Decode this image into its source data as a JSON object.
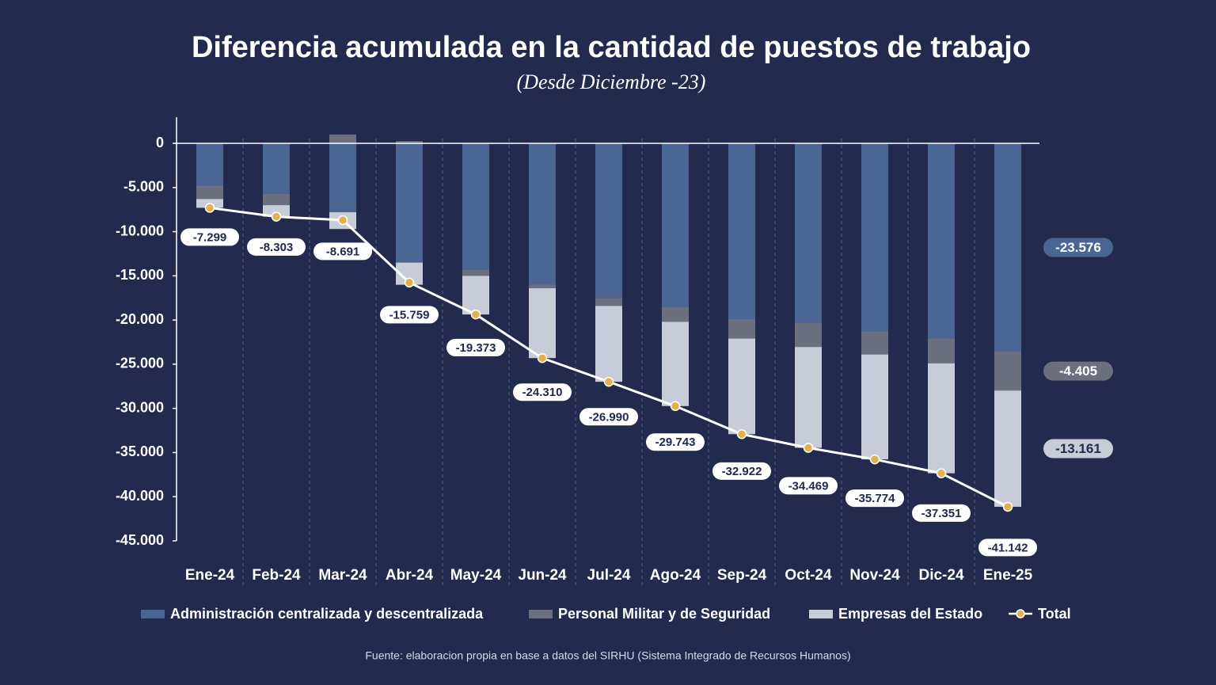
{
  "chart_data": {
    "type": "stacked_bar_line",
    "title": "Diferencia acumulada en la cantidad de puestos de trabajo",
    "subtitle": "(Desde Diciembre -23)",
    "source": "Fuente: elaboracion propia en base a datos del SIRHU (Sistema Integrado de Recursos Humanos)",
    "categories": [
      "Ene-24",
      "Feb-24",
      "Mar-24",
      "Abr-24",
      "May-24",
      "Jun-24",
      "Jul-24",
      "Ago-24",
      "Sep-24",
      "Oct-24",
      "Nov-24",
      "Dic-24",
      "Ene-25"
    ],
    "ylim": [
      -45000,
      3000
    ],
    "yticks": [
      {
        "value": -45000,
        "label": "-45.000"
      },
      {
        "value": -40000,
        "label": "-40.000"
      },
      {
        "value": -35000,
        "label": "-35.000"
      },
      {
        "value": -30000,
        "label": "-30.000"
      },
      {
        "value": -25000,
        "label": "-25.000"
      },
      {
        "value": -20000,
        "label": "-20.000"
      },
      {
        "value": -15000,
        "label": "-15.000"
      },
      {
        "value": -10000,
        "label": "-10.000"
      },
      {
        "value": -5000,
        "label": "-5.000"
      },
      0
    ],
    "grid": false,
    "series": [
      {
        "name": "Administración centralizada y descentralizada",
        "color": "#4a6592",
        "kind": "bar",
        "values": [
          -4800,
          -5700,
          -7800,
          -13500,
          -14300,
          -16000,
          -17500,
          -18500,
          -19900,
          -20350,
          -21300,
          -22100,
          -23576
        ],
        "value_labels": [
          null,
          null,
          null,
          null,
          null,
          null,
          null,
          null,
          null,
          null,
          null,
          null,
          "-23.576"
        ]
      },
      {
        "name": "Personal Militar y de Seguridad",
        "color": "#6b6f80",
        "kind": "bar",
        "values": [
          -1500,
          -1300,
          1000,
          250,
          -700,
          -400,
          -900,
          -1700,
          -2200,
          -2700,
          -2600,
          -2800,
          -4405
        ],
        "value_labels": [
          null,
          null,
          null,
          null,
          null,
          null,
          null,
          null,
          null,
          null,
          null,
          null,
          "-4.405"
        ]
      },
      {
        "name": "Empresas del Estado",
        "color": "#c8ccd9",
        "kind": "bar",
        "values": [
          -999,
          -1303,
          -1900,
          -2509,
          -4373,
          -7910,
          -8590,
          -9543,
          -10822,
          -11419,
          -11874,
          -12451,
          -13161
        ],
        "value_labels": [
          null,
          null,
          null,
          null,
          null,
          null,
          null,
          null,
          null,
          null,
          null,
          null,
          "-13.161"
        ]
      },
      {
        "name": "Total",
        "color": "#e3b04b",
        "kind": "line",
        "values": [
          -7299,
          -8303,
          -8691,
          -15759,
          -19373,
          -24310,
          -26990,
          -29743,
          -32922,
          -34469,
          -35774,
          -37351,
          -41142
        ],
        "value_labels": [
          "-7.299",
          "-8.303",
          "-8.691",
          "-15.759",
          "-19.373",
          "-24.310",
          "-26.990",
          "-29.743",
          "-32.922",
          "-34.469",
          "-35.774",
          "-37.351",
          "-41.142"
        ]
      }
    ]
  }
}
